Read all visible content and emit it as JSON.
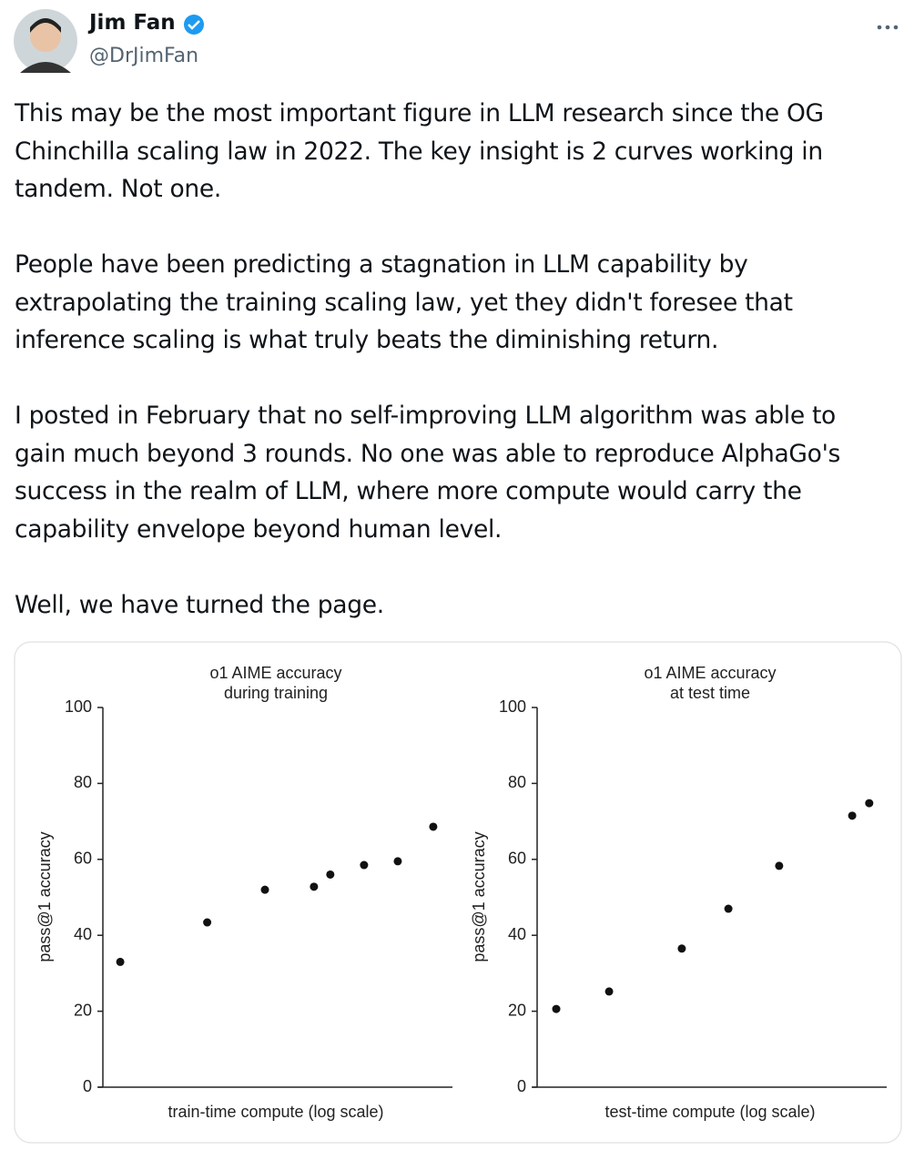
{
  "header": {
    "name": "Jim Fan",
    "handle": "@DrJimFan"
  },
  "paragraphs": [
    "This may be the most important figure in LLM research since the OG Chinchilla scaling law in 2022. The key insight is 2 curves working in tandem. Not one.",
    "People have been predicting a stagnation in LLM capability by extrapolating the training scaling law, yet they didn't foresee that inference scaling is what truly beats the diminishing return.",
    "I posted in February that no self-improving LLM algorithm was able to gain much beyond 3 rounds. No one was able to reproduce AlphaGo's success in the realm of LLM, where more compute would carry the capability envelope beyond human level.",
    "Well, we have turned the page."
  ],
  "chart_data": [
    {
      "type": "scatter",
      "title": [
        "o1 AIME accuracy",
        "during training"
      ],
      "xlabel": "train-time compute (log scale)",
      "ylabel": "pass@1 accuracy",
      "x": [
        5,
        30,
        46.6,
        60.7,
        65.4,
        75.1,
        84.8,
        95
      ],
      "values": [
        33,
        43.4,
        52,
        52.8,
        56,
        58.5,
        59.5,
        68.6
      ],
      "xlim": [
        0,
        100
      ],
      "ylim": [
        0,
        100
      ],
      "yticks": [
        0,
        20,
        40,
        60,
        80,
        100
      ],
      "color": "#111111"
    },
    {
      "type": "scatter",
      "title": [
        "o1 AIME accuracy",
        "at test time"
      ],
      "xlabel": "test-time compute (log scale)",
      "ylabel": "pass@1 accuracy",
      "x": [
        5.5,
        20.7,
        41.6,
        55,
        69.6,
        90.6,
        95.5
      ],
      "values": [
        20.6,
        25.2,
        36.5,
        47,
        58.3,
        71.5,
        74.8
      ],
      "xlim": [
        0,
        100
      ],
      "ylim": [
        0,
        100
      ],
      "yticks": [
        0,
        20,
        40,
        60,
        80,
        100
      ],
      "color": "#111111"
    }
  ]
}
